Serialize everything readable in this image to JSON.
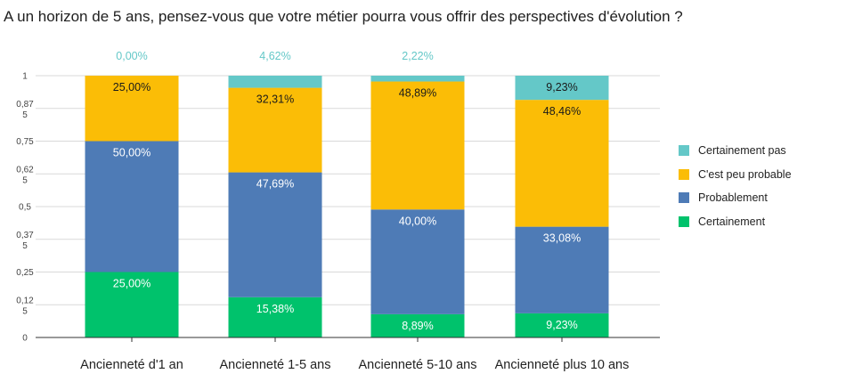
{
  "chart_data": {
    "type": "bar",
    "stacked": true,
    "title": "A un horizon de 5 ans, pensez-vous que votre métier pourra vous offrir des perspectives d'évolution ?",
    "categories": [
      "Ancienneté d'1 an",
      "Ancienneté 1-5 ans",
      "Ancienneté 5-10 ans",
      "Ancienneté plus 10 ans"
    ],
    "ylim": [
      0,
      1
    ],
    "yticks": [
      {
        "value": 0,
        "lines": [
          "0"
        ]
      },
      {
        "value": 0.125,
        "lines": [
          "0,12",
          "5"
        ]
      },
      {
        "value": 0.25,
        "lines": [
          "0,25"
        ]
      },
      {
        "value": 0.375,
        "lines": [
          "0,37",
          "5"
        ]
      },
      {
        "value": 0.5,
        "lines": [
          "0,5"
        ]
      },
      {
        "value": 0.625,
        "lines": [
          "0,62",
          "5"
        ]
      },
      {
        "value": 0.75,
        "lines": [
          "0,75"
        ]
      },
      {
        "value": 0.875,
        "lines": [
          "0,87",
          "5"
        ]
      },
      {
        "value": 1,
        "lines": [
          "1"
        ]
      }
    ],
    "grid": true,
    "legend_position": "right",
    "series": [
      {
        "name": "Certainement",
        "color": "#00c26c",
        "label_color": "#ffffff",
        "values": [
          0.25,
          0.1538,
          0.0889,
          0.0923
        ],
        "labels": [
          "25,00%",
          "15,38%",
          "8,89%",
          "9,23%"
        ]
      },
      {
        "name": "Probablement",
        "color": "#4e7bb6",
        "label_color": "#ffffff",
        "values": [
          0.5,
          0.4769,
          0.4,
          0.3308
        ],
        "labels": [
          "50,00%",
          "47,69%",
          "40,00%",
          "33,08%"
        ]
      },
      {
        "name": "C'est peu probable",
        "color": "#fbbd06",
        "label_color": "#1a1a1a",
        "values": [
          0.25,
          0.3231,
          0.4889,
          0.4846
        ],
        "labels": [
          "25,00%",
          "32,31%",
          "48,89%",
          "48,46%"
        ]
      },
      {
        "name": "Certainement pas",
        "color": "#64c8c8",
        "label_color": "#1a1a1a",
        "values": [
          0.0,
          0.0462,
          0.0222,
          0.0923
        ],
        "labels": [
          "0,00%",
          "4,62%",
          "2,22%",
          "9,23%"
        ]
      }
    ]
  }
}
